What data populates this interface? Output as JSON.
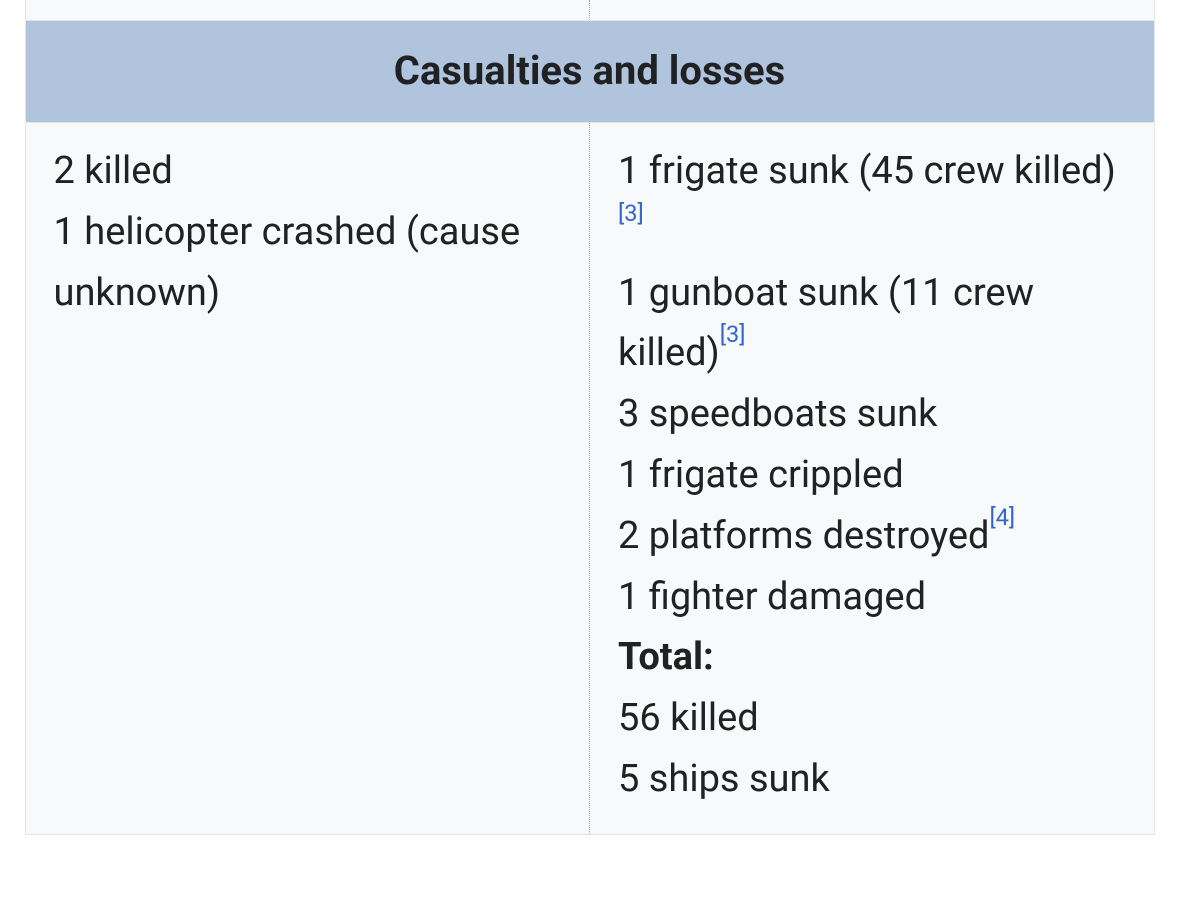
{
  "header": {
    "title": "Casualties and losses"
  },
  "colors": {
    "header_bg": "#b0c4de",
    "link": "#3366cc",
    "text": "#202122",
    "box_bg": "#f8f9fa"
  },
  "left": {
    "lines": [
      {
        "text": "2 killed"
      },
      {
        "text": "1 helicopter crashed (cause unknown)"
      }
    ]
  },
  "right": {
    "lines": [
      {
        "text": "1 frigate sunk (45 crew killed)",
        "ref": "[3]"
      },
      {
        "text": "1 gunboat sunk (11 crew killed)",
        "ref": "[3]"
      },
      {
        "text": "3 speedboats sunk"
      },
      {
        "text": "1 frigate crippled"
      },
      {
        "text": "2 platforms destroyed",
        "ref": "[4]"
      },
      {
        "text": "1 fighter damaged"
      },
      {
        "text": "Total:",
        "bold": true
      },
      {
        "text": "56 killed"
      },
      {
        "text": "5 ships sunk"
      }
    ]
  }
}
